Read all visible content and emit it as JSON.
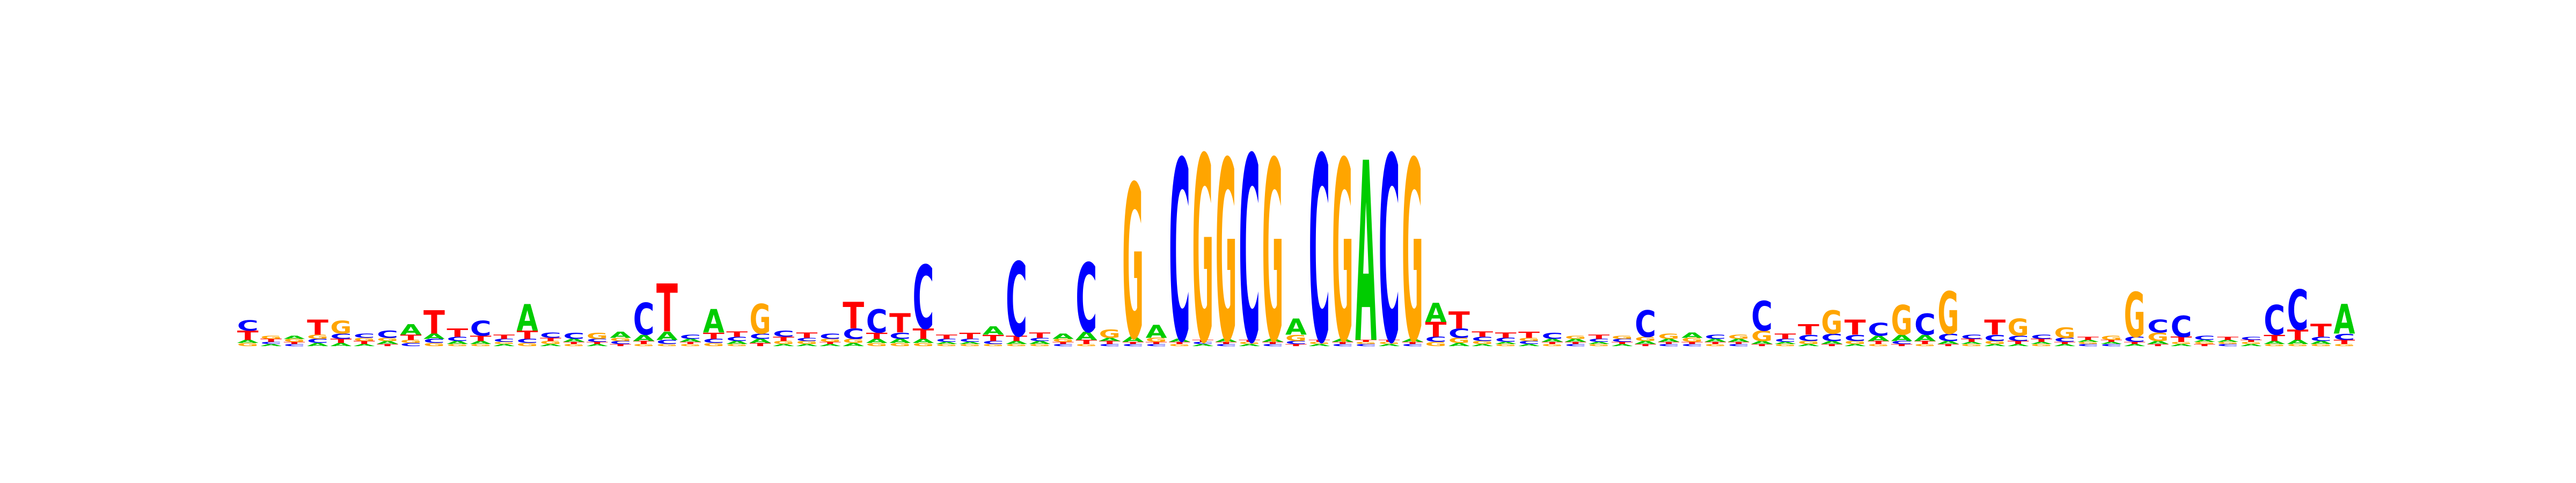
{
  "chart_data": {
    "type": "sequence-logo",
    "alphabet": [
      "A",
      "C",
      "G",
      "T"
    ],
    "colors": {
      "A": "#00cc00",
      "C": "#0000ff",
      "G": "#ffa500",
      "T": "#ff0000"
    },
    "ylim": [
      0,
      2
    ],
    "xlabel": "",
    "ylabel": "",
    "title": "",
    "grid": false,
    "positions": [
      {
        "C": 0.1,
        "T": 0.09,
        "G": 0.03,
        "A": 0.03
      },
      {
        "T": 0.03,
        "G": 0.03,
        "A": 0.02,
        "C": 0.02
      },
      {
        "G": 0.03,
        "A": 0.03,
        "C": 0.02,
        "T": 0.02
      },
      {
        "T": 0.14,
        "C": 0.04,
        "G": 0.04,
        "A": 0.03
      },
      {
        "G": 0.12,
        "C": 0.05,
        "T": 0.04,
        "A": 0.03
      },
      {
        "C": 0.04,
        "T": 0.03,
        "G": 0.03,
        "A": 0.02
      },
      {
        "C": 0.07,
        "A": 0.03,
        "G": 0.03,
        "T": 0.02
      },
      {
        "A": 0.1,
        "T": 0.05,
        "C": 0.03,
        "G": 0.03
      },
      {
        "T": 0.22,
        "A": 0.05,
        "C": 0.04,
        "G": 0.03
      },
      {
        "T": 0.08,
        "C": 0.04,
        "A": 0.03,
        "G": 0.02
      },
      {
        "C": 0.14,
        "T": 0.05,
        "A": 0.03,
        "G": 0.02
      },
      {
        "T": 0.04,
        "C": 0.03,
        "A": 0.02,
        "G": 0.02
      },
      {
        "A": 0.25,
        "T": 0.08,
        "C": 0.04,
        "G": 0.03
      },
      {
        "C": 0.05,
        "G": 0.03,
        "T": 0.03,
        "A": 0.02
      },
      {
        "C": 0.06,
        "A": 0.03,
        "G": 0.02,
        "T": 0.02
      },
      {
        "G": 0.06,
        "C": 0.03,
        "A": 0.02,
        "T": 0.02
      },
      {
        "A": 0.06,
        "C": 0.03,
        "G": 0.03,
        "T": 0.02
      },
      {
        "C": 0.3,
        "A": 0.06,
        "T": 0.03,
        "G": 0.02
      },
      {
        "T": 0.45,
        "A": 0.08,
        "C": 0.04,
        "G": 0.02
      },
      {
        "C": 0.04,
        "A": 0.03,
        "G": 0.02,
        "T": 0.02
      },
      {
        "A": 0.22,
        "T": 0.06,
        "C": 0.04,
        "G": 0.03
      },
      {
        "T": 0.05,
        "C": 0.04,
        "A": 0.03,
        "G": 0.02
      },
      {
        "G": 0.28,
        "C": 0.05,
        "A": 0.04,
        "T": 0.03
      },
      {
        "C": 0.06,
        "T": 0.04,
        "G": 0.03,
        "A": 0.02
      },
      {
        "T": 0.05,
        "G": 0.03,
        "C": 0.03,
        "A": 0.02
      },
      {
        "C": 0.05,
        "G": 0.03,
        "A": 0.02,
        "T": 0.02
      },
      {
        "T": 0.25,
        "C": 0.1,
        "G": 0.04,
        "A": 0.03
      },
      {
        "C": 0.22,
        "T": 0.06,
        "A": 0.04,
        "G": 0.03
      },
      {
        "T": 0.18,
        "C": 0.06,
        "A": 0.04,
        "G": 0.03
      },
      {
        "C": 0.6,
        "T": 0.1,
        "A": 0.04,
        "G": 0.03
      },
      {
        "T": 0.04,
        "C": 0.03,
        "G": 0.02,
        "A": 0.02
      },
      {
        "T": 0.06,
        "C": 0.03,
        "G": 0.02,
        "A": 0.02
      },
      {
        "A": 0.08,
        "T": 0.06,
        "C": 0.03,
        "G": 0.02
      },
      {
        "C": 0.7,
        "T": 0.05,
        "A": 0.03,
        "G": 0.02
      },
      {
        "T": 0.05,
        "A": 0.03,
        "C": 0.03,
        "G": 0.02
      },
      {
        "A": 0.05,
        "G": 0.03,
        "C": 0.02,
        "T": 0.02
      },
      {
        "C": 0.65,
        "A": 0.08,
        "T": 0.04,
        "G": 0.02
      },
      {
        "G": 0.08,
        "T": 0.03,
        "A": 0.03,
        "C": 0.02
      },
      {
        "G": 1.45,
        "A": 0.05,
        "C": 0.02,
        "T": 0.02
      },
      {
        "A": 0.12,
        "G": 0.04,
        "C": 0.02,
        "T": 0.02
      },
      {
        "C": 1.7,
        "A": 0.03,
        "G": 0.02,
        "T": 0.02
      },
      {
        "G": 1.75,
        "A": 0.02,
        "C": 0.02,
        "T": 0.02
      },
      {
        "G": 1.7,
        "A": 0.03,
        "C": 0.02,
        "T": 0.02
      },
      {
        "C": 1.75,
        "A": 0.02,
        "G": 0.02,
        "T": 0.02
      },
      {
        "G": 1.7,
        "A": 0.03,
        "C": 0.02,
        "T": 0.02
      },
      {
        "A": 0.15,
        "G": 0.06,
        "C": 0.03,
        "T": 0.02
      },
      {
        "C": 1.75,
        "A": 0.02,
        "G": 0.02,
        "T": 0.02
      },
      {
        "G": 1.7,
        "A": 0.03,
        "C": 0.02,
        "T": 0.02
      },
      {
        "A": 1.7,
        "C": 0.02,
        "G": 0.02,
        "T": 0.02
      },
      {
        "C": 1.75,
        "A": 0.02,
        "G": 0.02,
        "T": 0.02
      },
      {
        "G": 1.7,
        "A": 0.03,
        "C": 0.02,
        "T": 0.02
      },
      {
        "A": 0.18,
        "T": 0.14,
        "C": 0.05,
        "G": 0.04
      },
      {
        "T": 0.16,
        "C": 0.09,
        "G": 0.05,
        "A": 0.03
      },
      {
        "T": 0.05,
        "C": 0.04,
        "G": 0.03,
        "A": 0.02
      },
      {
        "T": 0.05,
        "C": 0.04,
        "G": 0.02,
        "A": 0.02
      },
      {
        "T": 0.06,
        "C": 0.03,
        "G": 0.03,
        "A": 0.02
      },
      {
        "C": 0.06,
        "A": 0.03,
        "G": 0.02,
        "T": 0.02
      },
      {
        "A": 0.03,
        "G": 0.03,
        "C": 0.02,
        "T": 0.02
      },
      {
        "T": 0.04,
        "C": 0.03,
        "G": 0.02,
        "A": 0.02
      },
      {
        "C": 0.03,
        "G": 0.03,
        "A": 0.02,
        "T": 0.02
      },
      {
        "C": 0.25,
        "G": 0.04,
        "A": 0.03,
        "T": 0.02
      },
      {
        "G": 0.05,
        "A": 0.03,
        "C": 0.02,
        "T": 0.02
      },
      {
        "A": 0.05,
        "G": 0.04,
        "C": 0.02,
        "T": 0.02
      },
      {
        "C": 0.04,
        "A": 0.03,
        "G": 0.02,
        "T": 0.02
      },
      {
        "G": 0.04,
        "A": 0.03,
        "C": 0.02,
        "T": 0.02
      },
      {
        "C": 0.28,
        "G": 0.1,
        "A": 0.03,
        "T": 0.02
      },
      {
        "T": 0.05,
        "C": 0.03,
        "G": 0.02,
        "A": 0.02
      },
      {
        "T": 0.1,
        "C": 0.06,
        "G": 0.03,
        "A": 0.02
      },
      {
        "G": 0.22,
        "C": 0.07,
        "A": 0.03,
        "T": 0.02
      },
      {
        "T": 0.14,
        "C": 0.06,
        "G": 0.03,
        "A": 0.02
      },
      {
        "C": 0.12,
        "A": 0.05,
        "T": 0.03,
        "G": 0.02
      },
      {
        "G": 0.28,
        "A": 0.06,
        "C": 0.03,
        "T": 0.02
      },
      {
        "C": 0.2,
        "A": 0.06,
        "T": 0.03,
        "G": 0.02
      },
      {
        "G": 0.4,
        "C": 0.07,
        "A": 0.03,
        "T": 0.02
      },
      {
        "C": 0.04,
        "T": 0.03,
        "G": 0.02,
        "A": 0.02
      },
      {
        "T": 0.14,
        "C": 0.06,
        "G": 0.03,
        "A": 0.02
      },
      {
        "G": 0.16,
        "C": 0.05,
        "T": 0.03,
        "A": 0.02
      },
      {
        "C": 0.04,
        "T": 0.03,
        "G": 0.02,
        "A": 0.02
      },
      {
        "G": 0.1,
        "C": 0.04,
        "A": 0.02,
        "T": 0.02
      },
      {
        "T": 0.03,
        "C": 0.02,
        "G": 0.02,
        "A": 0.02
      },
      {
        "G": 0.04,
        "C": 0.02,
        "A": 0.02,
        "T": 0.02
      },
      {
        "G": 0.42,
        "C": 0.05,
        "A": 0.02,
        "T": 0.02
      },
      {
        "C": 0.12,
        "G": 0.08,
        "A": 0.03,
        "T": 0.02
      },
      {
        "C": 0.2,
        "T": 0.05,
        "A": 0.02,
        "G": 0.02
      },
      {
        "C": 0.04,
        "T": 0.02,
        "G": 0.02,
        "A": 0.02
      },
      {
        "T": 0.03,
        "C": 0.02,
        "G": 0.02,
        "A": 0.02
      },
      {
        "C": 0.03,
        "A": 0.02,
        "G": 0.02,
        "T": 0.02
      },
      {
        "C": 0.28,
        "T": 0.06,
        "A": 0.03,
        "G": 0.02
      },
      {
        "C": 0.38,
        "T": 0.1,
        "A": 0.04,
        "G": 0.02
      },
      {
        "T": 0.12,
        "C": 0.04,
        "A": 0.03,
        "G": 0.02
      },
      {
        "A": 0.28,
        "C": 0.06,
        "T": 0.04,
        "G": 0.02
      }
    ]
  }
}
